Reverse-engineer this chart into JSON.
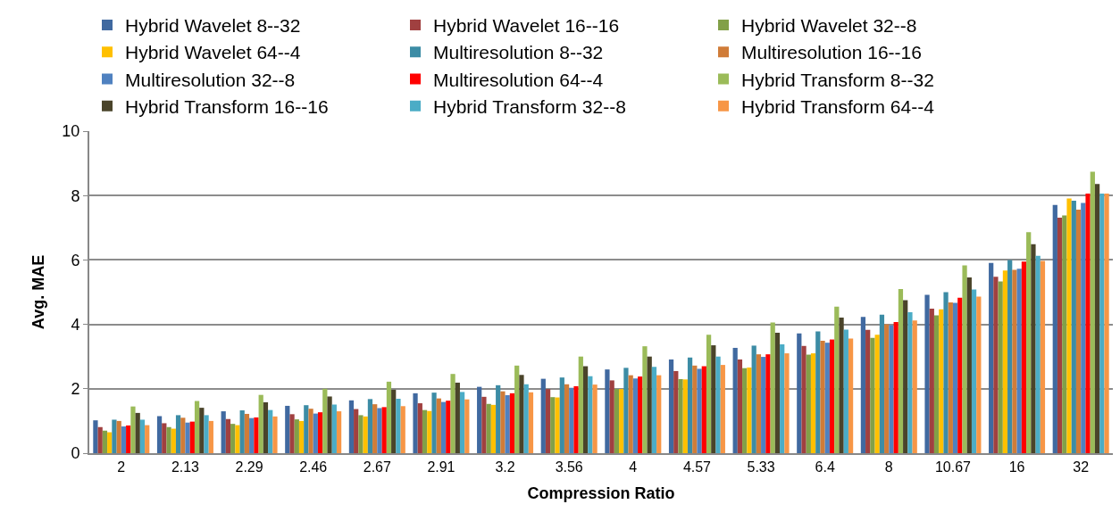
{
  "chart_data": {
    "type": "bar",
    "xlabel": "Compression Ratio",
    "ylabel": "Avg. MAE",
    "categories": [
      "2",
      "2.13",
      "2.29",
      "2.46",
      "2.67",
      "2.91",
      "3.2",
      "3.56",
      "4",
      "4.57",
      "5.33",
      "6.4",
      "8",
      "10.67",
      "16",
      "32"
    ],
    "ylim": [
      0,
      10
    ],
    "yticks": [
      0,
      2,
      4,
      6,
      8,
      10
    ],
    "grid": "y",
    "legend": "top",
    "series": [
      {
        "name": "Hybrid Wavelet 8--32",
        "color": "#4069a0",
        "values": [
          1.02,
          1.15,
          1.3,
          1.47,
          1.64,
          1.86,
          2.06,
          2.31,
          2.6,
          2.91,
          3.27,
          3.72,
          4.23,
          4.92,
          5.91,
          7.71
        ]
      },
      {
        "name": "Hybrid Wavelet 16--16",
        "color": "#a04040",
        "values": [
          0.81,
          0.93,
          1.06,
          1.21,
          1.37,
          1.55,
          1.75,
          1.99,
          2.26,
          2.55,
          2.91,
          3.33,
          3.83,
          4.49,
          5.48,
          7.31
        ]
      },
      {
        "name": "Hybrid Wavelet 32--8",
        "color": "#82a048",
        "values": [
          0.7,
          0.81,
          0.91,
          1.05,
          1.18,
          1.34,
          1.53,
          1.74,
          1.99,
          2.3,
          2.64,
          3.06,
          3.58,
          4.28,
          5.33,
          7.38
        ]
      },
      {
        "name": "Hybrid Wavelet 64--4",
        "color": "#ffc000",
        "values": [
          0.65,
          0.76,
          0.87,
          1.0,
          1.14,
          1.31,
          1.5,
          1.73,
          1.99,
          2.29,
          2.66,
          3.1,
          3.68,
          4.47,
          5.67,
          7.91
        ]
      },
      {
        "name": "Multiresolution 8--32",
        "color": "#3c8ca5",
        "values": [
          1.04,
          1.18,
          1.33,
          1.49,
          1.68,
          1.88,
          2.11,
          2.35,
          2.65,
          2.97,
          3.34,
          3.78,
          4.3,
          5.0,
          6.0,
          7.84
        ]
      },
      {
        "name": "Multiresolution 16--16",
        "color": "#d07c38",
        "values": [
          1.0,
          1.1,
          1.22,
          1.38,
          1.52,
          1.7,
          1.92,
          2.14,
          2.42,
          2.72,
          3.07,
          3.49,
          4.0,
          4.68,
          5.69,
          7.56
        ]
      },
      {
        "name": "Multiresolution 32--8",
        "color": "#4f81c0",
        "values": [
          0.83,
          0.95,
          1.09,
          1.23,
          1.4,
          1.59,
          1.8,
          2.03,
          2.32,
          2.62,
          2.99,
          3.43,
          3.97,
          4.67,
          5.73,
          7.77
        ]
      },
      {
        "name": "Multiresolution 64--4",
        "color": "#ff0000",
        "values": [
          0.86,
          0.98,
          1.11,
          1.27,
          1.43,
          1.63,
          1.86,
          2.08,
          2.38,
          2.7,
          3.07,
          3.53,
          4.07,
          4.83,
          5.95,
          8.06
        ]
      },
      {
        "name": "Hybrid Transform 8--32",
        "color": "#9bbb59",
        "values": [
          1.45,
          1.62,
          1.81,
          2.0,
          2.22,
          2.46,
          2.72,
          3.0,
          3.32,
          3.68,
          4.06,
          4.55,
          5.1,
          5.83,
          6.86,
          8.74
        ]
      },
      {
        "name": "Hybrid Transform 16--16",
        "color": "#4a442a",
        "values": [
          1.25,
          1.41,
          1.58,
          1.76,
          1.97,
          2.19,
          2.43,
          2.7,
          3.0,
          3.35,
          3.74,
          4.21,
          4.75,
          5.46,
          6.49,
          8.36
        ]
      },
      {
        "name": "Hybrid Transform 32--8",
        "color": "#4bacc6",
        "values": [
          1.04,
          1.18,
          1.34,
          1.51,
          1.69,
          1.9,
          2.14,
          2.39,
          2.68,
          3.0,
          3.38,
          3.84,
          4.38,
          5.08,
          6.13,
          8.06
        ]
      },
      {
        "name": "Hybrid Transform 64--4",
        "color": "#f79646",
        "values": [
          0.87,
          1.0,
          1.14,
          1.3,
          1.46,
          1.67,
          1.89,
          2.13,
          2.42,
          2.74,
          3.1,
          3.56,
          4.12,
          4.86,
          5.97,
          8.06
        ]
      }
    ]
  }
}
